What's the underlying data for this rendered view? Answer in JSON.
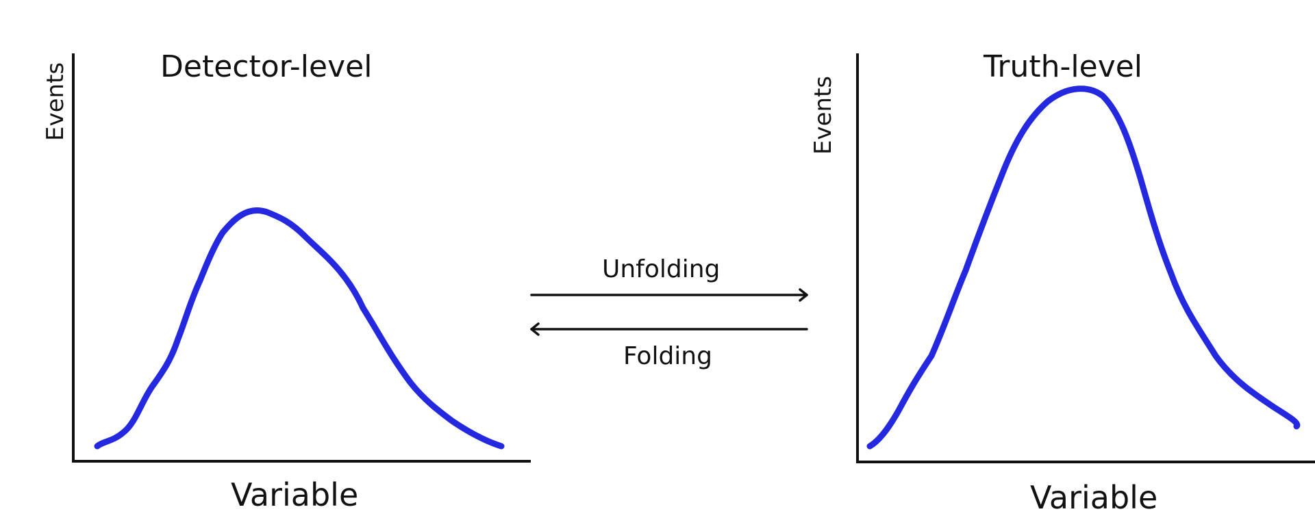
{
  "left_panel": {
    "title": "Detector-level",
    "ylabel": "Events",
    "xlabel": "Variable"
  },
  "right_panel": {
    "title": "Truth-level",
    "ylabel": "Events",
    "xlabel": "Variable"
  },
  "arrows": {
    "forward_label": "Unfolding",
    "backward_label": "Folding"
  },
  "colors": {
    "curve": "#2429e0",
    "axes": "#111111",
    "background": "#ffffff"
  }
}
